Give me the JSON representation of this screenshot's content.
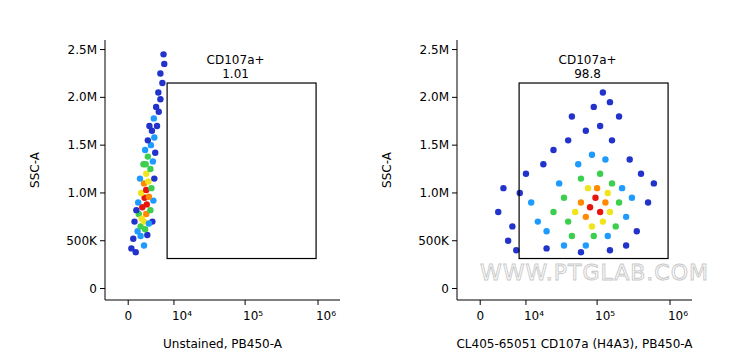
{
  "chart_data": [
    {
      "type": "scatter",
      "x_label": "Unstained, PB450-A",
      "y_label": "SSC-A",
      "xlim": [
        -4000,
        2000000
      ],
      "ylim": [
        -120000,
        2600000
      ],
      "xticks": [
        0,
        {
          "value": 10000,
          "label": "10⁴"
        },
        {
          "value": 100000,
          "label": "10⁵"
        },
        {
          "value": 1000000,
          "label": "10⁶"
        }
      ],
      "yticks": [
        0,
        {
          "value": 500000,
          "label": "500K"
        },
        {
          "value": 1000000,
          "label": "1.0M"
        },
        {
          "value": 1500000,
          "label": "1.5M"
        },
        {
          "value": 2000000,
          "label": "2.0M"
        },
        {
          "value": 2500000,
          "label": "2.5M"
        }
      ],
      "gate": {
        "label": "CD107a+",
        "value": 1.01,
        "xrange": [
          7800,
          940000
        ],
        "yrange": [
          314000,
          2150000
        ]
      },
      "x": [
        500,
        1200,
        2600,
        800,
        3200,
        1500,
        4200,
        1000,
        2000,
        2600,
        1700,
        3000,
        3800,
        2300,
        3100,
        1600,
        4400,
        2700,
        3500,
        2100,
        3000,
        4000,
        2600,
        3400,
        1900,
        4600,
        3000,
        3800,
        2500,
        4300,
        3300,
        2800,
        4800,
        3900,
        3300,
        4600,
        4100,
        5200,
        4500,
        5600,
        5000,
        6000,
        5500,
        6500,
        6000,
        7000,
        6800,
        2000,
        2800,
        3500,
        2200,
        1300,
        2900,
        3600
      ],
      "values": [
        420000,
        380000,
        450000,
        520000,
        560000,
        600000,
        700000,
        700000,
        650000,
        700000,
        780000,
        780000,
        820000,
        850000,
        880000,
        900000,
        920000,
        950000,
        960000,
        1000000,
        1030000,
        1050000,
        1100000,
        1120000,
        1150000,
        1150000,
        1200000,
        1250000,
        1300000,
        1330000,
        1380000,
        1450000,
        1420000,
        1500000,
        1550000,
        1580000,
        1650000,
        1700000,
        1780000,
        1850000,
        1900000,
        1980000,
        2050000,
        2150000,
        2250000,
        2350000,
        2450000,
        550000,
        620000,
        680000,
        730000,
        820000,
        1300000,
        1700000
      ],
      "colors": [
        "#2233cc",
        "#2233cc",
        "#1e9bff",
        "#2233cc",
        "#2233cc",
        "#1e9bff",
        "#2233cc",
        "#2233cc",
        "#3ccf4e",
        "#f2e41c",
        "#3ccf4e",
        "#ff8a00",
        "#3ccf4e",
        "#e8150f",
        "#e8150f",
        "#1e9bff",
        "#1e9bff",
        "#e8150f",
        "#ff8a00",
        "#f2e41c",
        "#e8150f",
        "#3ccf4e",
        "#ff8a00",
        "#f2e41c",
        "#1e9bff",
        "#2233cc",
        "#f2e41c",
        "#3ccf4e",
        "#3ccf4e",
        "#1e9bff",
        "#3ccf4e",
        "#1e9bff",
        "#2233cc",
        "#1e9bff",
        "#2233cc",
        "#1e9bff",
        "#2233cc",
        "#2233cc",
        "#1e9bff",
        "#2233cc",
        "#2233cc",
        "#2233cc",
        "#2233cc",
        "#2233cc",
        "#2233cc",
        "#2233cc",
        "#2233cc",
        "#1e9bff",
        "#3ccf4e",
        "#1e9bff",
        "#f2e41c",
        "#2233cc",
        "#3ccf4e",
        "#2233cc"
      ]
    },
    {
      "type": "scatter",
      "x_label": "CL405-65051 CD107a (H4A3), PB450-A",
      "y_label": "SSC-A",
      "watermark": "WWW.PTGLAB.COM",
      "xlim": [
        -4000,
        2000000
      ],
      "ylim": [
        -120000,
        2600000
      ],
      "xticks": [
        0,
        {
          "value": 10000,
          "label": "10⁴"
        },
        {
          "value": 100000,
          "label": "10⁵"
        },
        {
          "value": 1000000,
          "label": "10⁶"
        }
      ],
      "yticks": [
        0,
        {
          "value": 500000,
          "label": "500K"
        },
        {
          "value": 1000000,
          "label": "1.0M"
        },
        {
          "value": 1500000,
          "label": "1.5M"
        },
        {
          "value": 2000000,
          "label": "2.0M"
        },
        {
          "value": 2500000,
          "label": "2.5M"
        }
      ],
      "gate": {
        "label": "CD107a+",
        "value": 98.8,
        "xrange": [
          7800,
          940000
        ],
        "yrange": [
          314000,
          2150000
        ]
      },
      "x": [
        5000,
        3000,
        8000,
        6000,
        10000,
        18000,
        25000,
        40000,
        70000,
        110000,
        160000,
        200000,
        150000,
        90000,
        400000,
        500000,
        350000,
        250000,
        150000,
        60000,
        20000,
        4000,
        280000,
        45000,
        7000,
        600000,
        120000,
        20000,
        30000,
        250000,
        15000,
        55000,
        130000,
        220000,
        70000,
        140000,
        12000,
        35000,
        85000,
        300000,
        40000,
        200000,
        60000,
        110000,
        35000,
        180000,
        90000,
        45000,
        160000,
        25000,
        150000,
        85000,
        120000,
        50000,
        75000,
        140000,
        70000,
        130000,
        60000,
        100000,
        80000,
        110000,
        95000
      ],
      "values": [
        500000,
        800000,
        1000000,
        650000,
        1200000,
        1300000,
        1450000,
        1550000,
        1650000,
        1700000,
        1550000,
        1800000,
        1950000,
        1900000,
        1200000,
        900000,
        600000,
        450000,
        400000,
        380000,
        420000,
        1050000,
        1350000,
        1800000,
        400000,
        1100000,
        2050000,
        600000,
        1100000,
        750000,
        700000,
        1300000,
        1350000,
        1050000,
        450000,
        550000,
        900000,
        450000,
        1400000,
        950000,
        700000,
        900000,
        1150000,
        1200000,
        950000,
        650000,
        550000,
        550000,
        1100000,
        800000,
        800000,
        650000,
        700000,
        800000,
        1050000,
        1000000,
        750000,
        900000,
        900000,
        1050000,
        850000,
        800000,
        950000
      ],
      "colors": [
        "#2233cc",
        "#2233cc",
        "#2233cc",
        "#2233cc",
        "#2233cc",
        "#2233cc",
        "#2233cc",
        "#2233cc",
        "#2233cc",
        "#2233cc",
        "#2233cc",
        "#2233cc",
        "#2233cc",
        "#2233cc",
        "#2233cc",
        "#2233cc",
        "#2233cc",
        "#2233cc",
        "#2233cc",
        "#2233cc",
        "#2233cc",
        "#2233cc",
        "#2233cc",
        "#2233cc",
        "#2233cc",
        "#2233cc",
        "#2233cc",
        "#1e9bff",
        "#1e9bff",
        "#1e9bff",
        "#1e9bff",
        "#1e9bff",
        "#1e9bff",
        "#1e9bff",
        "#1e9bff",
        "#1e9bff",
        "#1e9bff",
        "#1e9bff",
        "#1e9bff",
        "#1e9bff",
        "#3ccf4e",
        "#3ccf4e",
        "#3ccf4e",
        "#3ccf4e",
        "#3ccf4e",
        "#3ccf4e",
        "#3ccf4e",
        "#3ccf4e",
        "#3ccf4e",
        "#3ccf4e",
        "#f2e41c",
        "#f2e41c",
        "#f2e41c",
        "#f2e41c",
        "#f2e41c",
        "#f2e41c",
        "#ff8a00",
        "#ff8a00",
        "#ff8a00",
        "#ff8a00",
        "#e8150f",
        "#e8150f",
        "#e8150f"
      ]
    }
  ]
}
